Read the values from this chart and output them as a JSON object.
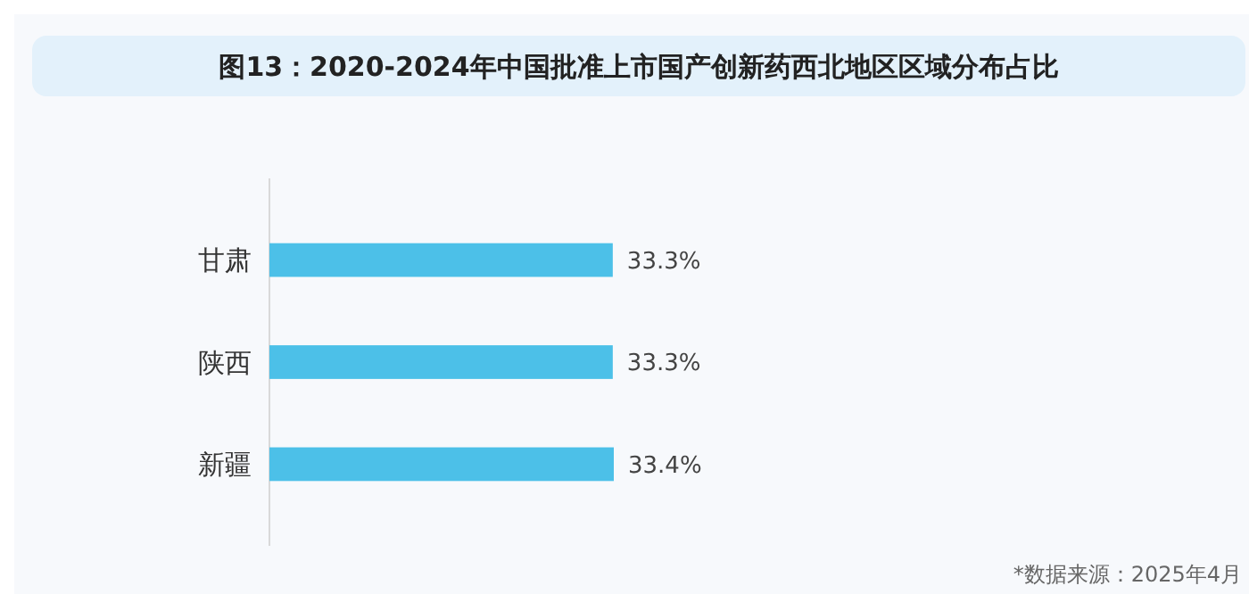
{
  "chart_data": {
    "type": "bar",
    "orientation": "horizontal",
    "title": "图13：2020-2024年中国批准上市国产创新药西北地区区域分布占比",
    "categories": [
      "甘肃",
      "陕西",
      "新疆"
    ],
    "values": [
      33.3,
      33.3,
      33.4
    ],
    "value_labels": [
      "33.3%",
      "33.3%",
      "33.4%"
    ],
    "color": "#4cc0e8",
    "annotations": [
      "*数据来源：2025年4月"
    ]
  }
}
